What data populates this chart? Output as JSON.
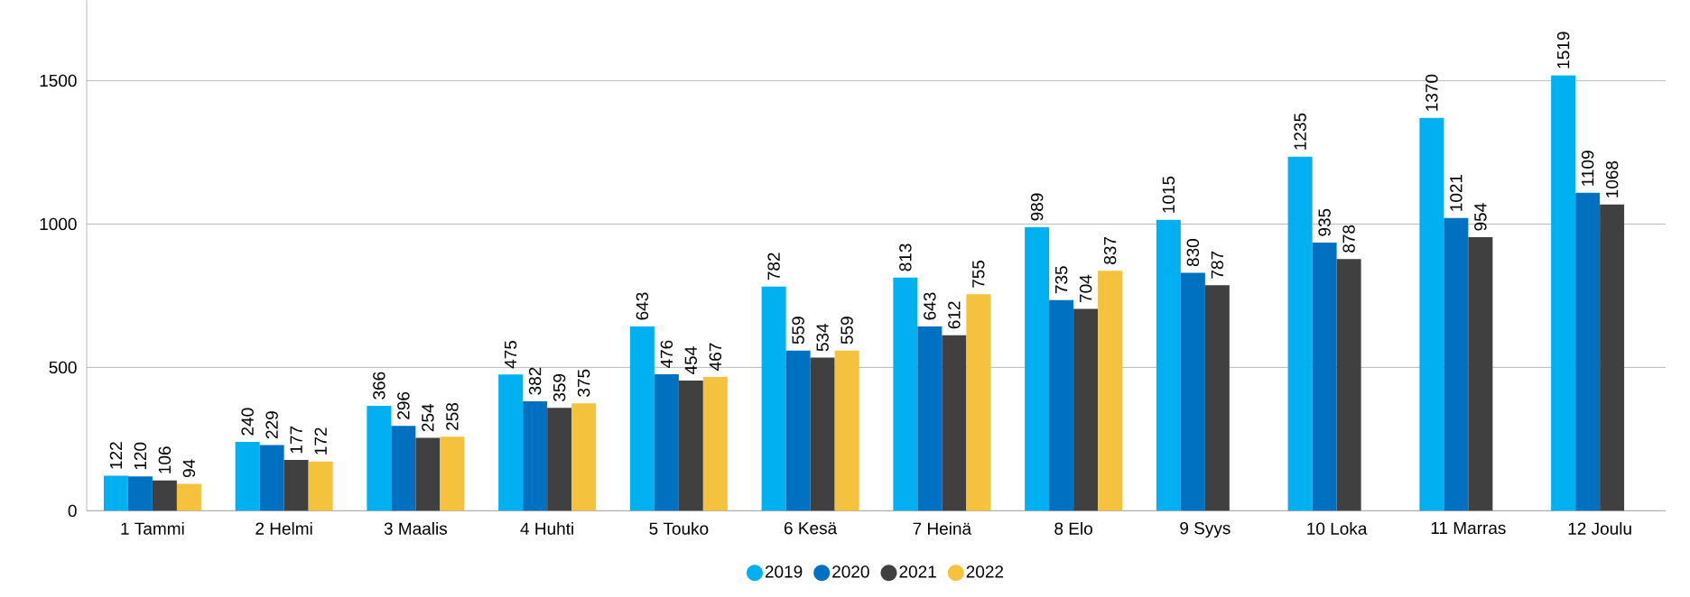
{
  "chart_data": {
    "type": "bar",
    "categories": [
      "1 Tammi",
      "2 Helmi",
      "3 Maalis",
      "4 Huhti",
      "5 Touko",
      "6 Kesä",
      "7 Heinä",
      "8 Elo",
      "9 Syys",
      "10 Loka",
      "11 Marras",
      "12 Joulu"
    ],
    "series": [
      {
        "name": "2019",
        "color": "#00b0f0",
        "values": [
          122,
          240,
          366,
          475,
          643,
          782,
          813,
          989,
          1015,
          1235,
          1370,
          1519
        ]
      },
      {
        "name": "2020",
        "color": "#0070c0",
        "values": [
          120,
          229,
          296,
          382,
          476,
          559,
          643,
          735,
          830,
          935,
          1021,
          1109
        ]
      },
      {
        "name": "2021",
        "color": "#404040",
        "values": [
          106,
          177,
          254,
          359,
          454,
          534,
          612,
          704,
          787,
          878,
          954,
          1068
        ]
      },
      {
        "name": "2022",
        "color": "#f4c23c",
        "values": [
          94,
          172,
          258,
          375,
          467,
          559,
          755,
          837,
          null,
          null,
          null,
          null
        ]
      }
    ],
    "ylim": [
      0,
      1780
    ],
    "yticks": [
      0,
      500,
      1000,
      1500
    ],
    "grid": "y",
    "legend": "bottom",
    "data_labels": true
  }
}
